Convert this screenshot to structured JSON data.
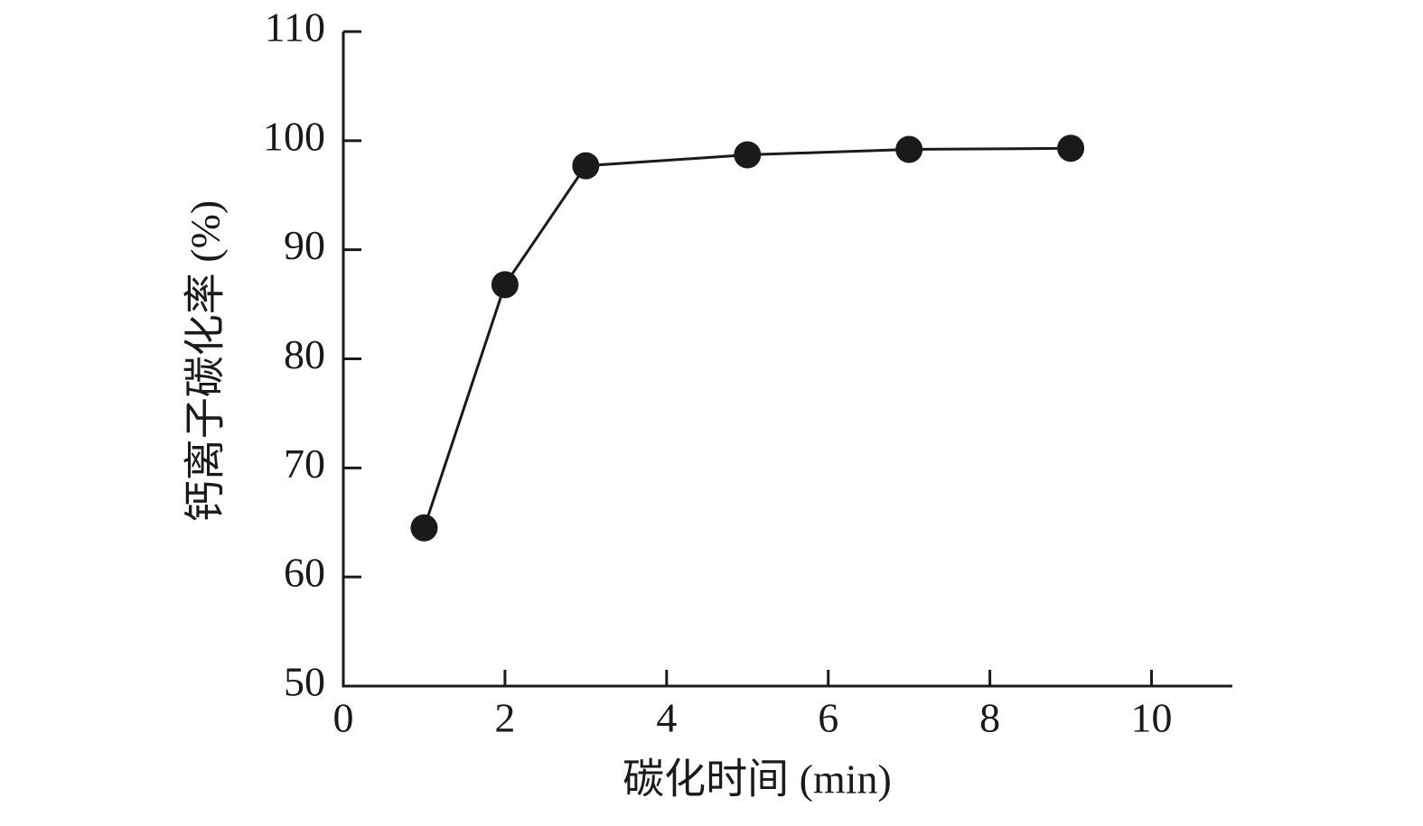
{
  "chart_data": {
    "type": "line",
    "x_label": "碳化时间 (min)",
    "y_label": "钙离子碳化率 (%)",
    "x": [
      1,
      2,
      3,
      5,
      7,
      9
    ],
    "series": [
      {
        "values": [
          64.5,
          86.8,
          97.7,
          98.7,
          99.2,
          99.3
        ],
        "color": "#1a1a1a"
      }
    ],
    "xlim": [
      0,
      11
    ],
    "xticks": [
      0,
      2,
      4,
      6,
      8,
      10
    ],
    "ylim": [
      50,
      110
    ],
    "yticks": [
      50,
      60,
      70,
      80,
      90,
      100,
      110
    ],
    "grid": false
  }
}
